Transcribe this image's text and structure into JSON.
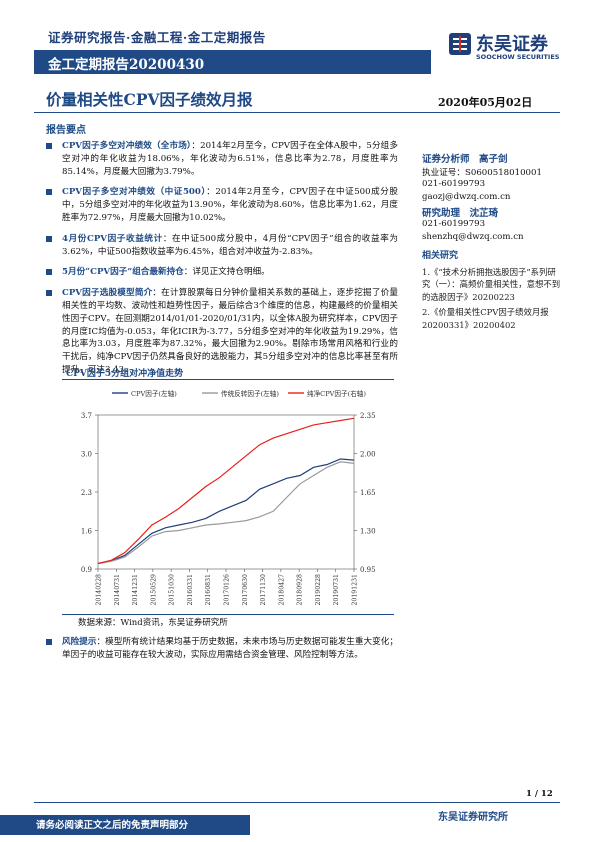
{
  "header": {
    "category_line": "证券研究报告·金融工程·金工定期报告",
    "report_type": "金工定期报告20200430",
    "logo_cn": "东吴证券",
    "logo_en": "SOOCHOW SECURITIES"
  },
  "title": "价量相关性CPV因子绩效月报",
  "date": "2020年05月02日",
  "section_heading": "报告要点",
  "bullets": [
    {
      "head": "CPV因子多空对冲绩效（全市场）",
      "text": "：2014年2月至今，CPV因子在全体A股中，5分组多空对冲的年化收益为18.06%，年化波动为6.51%，信息比率为2.78，月度胜率为85.14%，月度最大回撤为3.79%。"
    },
    {
      "head": "CPV因子多空对冲绩效（中证500）",
      "text": "：2014年2月至今，CPV因子在中证500成分股中，5分组多空对冲的年化收益为13.90%，年化波动为8.60%，信息比率为1.62，月度胜率为72.97%，月度最大回撤为10.02%。"
    },
    {
      "head": "4月份CPV因子收益统计",
      "text": "：在中证500成分股中，4月份“CPV因子”组合的收益率为3.62%，中证500指数收益率为6.45%，组合对冲收益为-2.83%。"
    },
    {
      "head": "5月份“CPV因子”组合最新持仓",
      "text": "：详见正文持仓明细。"
    },
    {
      "head": "CPV因子选股模型简介",
      "text": "：在计算股票每日分钟价量相关系数的基础上，逐步挖掘了价量相关性的平均数、波动性和趋势性因子，最后综合3个维度的信息，构建最终的价量相关性因子CPV。在回测期2014/01/01-2020/01/31内，以全体A股为研究样本，CPV因子的月度IC均值为-0.053，年化ICIR为-3.77，5分组多空对冲的年化收益为19.29%，信息比率为3.03，月度胜率为87.32%，最大回撤为2.90%。剔除市场常用风格和行业的干扰后，纯净CPV因子仍然具备良好的选股能力，其5分组多空对冲的信息比率甚至有所提升，可达3.43。"
    }
  ],
  "chart_title": "CPV因子5分组对冲净值走势",
  "source_text": "数据来源：Wind资讯，东吴证券研究所",
  "risk": {
    "head": "风险提示",
    "text": "：模型所有统计结果均基于历史数据，未来市场与历史数据可能发生重大变化；单因子的收益可能存在较大波动，实际应用需结合资金管理、风险控制等方法。"
  },
  "analysts": {
    "a1_title": "证券分析师　高子剑",
    "a1_cert": "执业证号：S0600518010001",
    "a1_phone": "021-60199793",
    "a1_email": "gaozj@dwzq.com.cn",
    "a2_title": "研究助理　沈芷琦",
    "a2_phone": "021-60199793",
    "a2_email": "shenzhq@dwzq.com.cn"
  },
  "related": {
    "heading": "相关研究",
    "items": [
      "1.《“技术分析拥抱选股因子”系列研究（一）：高频价量相关性，意想不到的选股因子》20200223",
      "2.《价量相关性CPV因子绩效月报20200331》20200402"
    ]
  },
  "page_num": "1 / 12",
  "footer_org": "东吴证券研究所",
  "footer_disclaimer": "请务必阅读正文之后的免责声明部分",
  "chart_data": {
    "type": "line",
    "title": "CPV因子5分组对冲净值走势",
    "x": [
      "20140228",
      "20140630",
      "20141031",
      "20150227",
      "20150630",
      "20151030",
      "20160229",
      "20160630",
      "20161031",
      "20170228",
      "20170630",
      "20171031",
      "20180228",
      "20180629",
      "20181031",
      "20190228",
      "20190628",
      "20191031",
      "20200228",
      "20200430"
    ],
    "x_tick_labels": [
      "20140228",
      "20140731",
      "20141231",
      "20150529",
      "20151030",
      "20160331",
      "20160831",
      "20170126",
      "20170630",
      "20171130",
      "20180427",
      "20180928",
      "20190228",
      "20190731",
      "20191231"
    ],
    "y_left_ticks": [
      "0.9",
      "1.6",
      "2.3",
      "3.0",
      "3.7"
    ],
    "y_left_lim": [
      0.9,
      3.7
    ],
    "y_right_ticks": [
      "0.95",
      "1.30",
      "1.65",
      "2.00",
      "2.35"
    ],
    "y_right_lim": [
      0.95,
      2.35
    ],
    "grid": false,
    "legend_position": "top",
    "series": [
      {
        "name": "CPV因子(左轴)",
        "axis": "left",
        "color": "#1f3f7a",
        "values": [
          1.0,
          1.05,
          1.15,
          1.35,
          1.55,
          1.65,
          1.7,
          1.75,
          1.82,
          1.95,
          2.05,
          2.15,
          2.35,
          2.45,
          2.55,
          2.6,
          2.75,
          2.8,
          2.9,
          2.88
        ]
      },
      {
        "name": "传统反转因子(左轴)",
        "axis": "left",
        "color": "#9a9a9a",
        "values": [
          1.0,
          1.04,
          1.12,
          1.3,
          1.5,
          1.58,
          1.6,
          1.65,
          1.7,
          1.72,
          1.75,
          1.78,
          1.85,
          1.95,
          2.2,
          2.45,
          2.6,
          2.75,
          2.85,
          2.82
        ]
      },
      {
        "name": "纯净CPV因子(右轴)",
        "axis": "right",
        "color": "#e8211b",
        "values": [
          1.0,
          1.03,
          1.1,
          1.22,
          1.35,
          1.42,
          1.5,
          1.6,
          1.7,
          1.78,
          1.88,
          1.98,
          2.08,
          2.14,
          2.18,
          2.22,
          2.26,
          2.28,
          2.3,
          2.32
        ]
      }
    ]
  }
}
